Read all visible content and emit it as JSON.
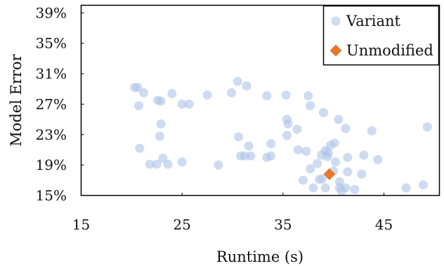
{
  "chart_data": {
    "type": "scatter",
    "xlabel": "Runtime (s)",
    "ylabel": "Model Error",
    "xlim": [
      15,
      50.5
    ],
    "ylim": [
      15,
      40
    ],
    "x_ticks": [
      15,
      25,
      35,
      45
    ],
    "x_tick_labels": [
      "15",
      "25",
      "35",
      "45"
    ],
    "y_ticks": [
      15,
      19,
      23,
      27,
      31,
      35,
      39
    ],
    "y_tick_labels": [
      "15%",
      "19%",
      "23%",
      "27%",
      "31%",
      "35%",
      "39%"
    ],
    "grid": false,
    "legend_position": "top-right",
    "series": [
      {
        "name": "Variant",
        "marker": "circle",
        "color": "#aec3e8",
        "points": [
          [
            20.3,
            29.2
          ],
          [
            20.6,
            29.2
          ],
          [
            20.7,
            26.8
          ],
          [
            21.2,
            28.5
          ],
          [
            22.6,
            27.5
          ],
          [
            22.9,
            27.4
          ],
          [
            24.0,
            28.4
          ],
          [
            25.0,
            27.0
          ],
          [
            25.7,
            27.0
          ],
          [
            27.5,
            28.2
          ],
          [
            29.9,
            28.5
          ],
          [
            30.5,
            30.0
          ],
          [
            31.4,
            29.4
          ],
          [
            33.4,
            28.1
          ],
          [
            35.3,
            28.2
          ],
          [
            37.5,
            28.1
          ],
          [
            37.7,
            26.8
          ],
          [
            39.0,
            25.9
          ],
          [
            40.5,
            25.0
          ],
          [
            35.4,
            25.0
          ],
          [
            35.5,
            24.4
          ],
          [
            36.4,
            23.7
          ],
          [
            22.9,
            24.4
          ],
          [
            22.8,
            22.8
          ],
          [
            20.8,
            21.2
          ],
          [
            30.6,
            22.7
          ],
          [
            31.6,
            21.5
          ],
          [
            33.8,
            21.8
          ],
          [
            35.4,
            22.9
          ],
          [
            36.5,
            21.0
          ],
          [
            37.3,
            20.8
          ],
          [
            38.8,
            20.3
          ],
          [
            39.2,
            20.9
          ],
          [
            39.5,
            20.6
          ],
          [
            39.4,
            20.1
          ],
          [
            39.7,
            21.6
          ],
          [
            40.1,
            21.9
          ],
          [
            40.2,
            19.4
          ],
          [
            41.4,
            20.0
          ],
          [
            41.2,
            23.8
          ],
          [
            43.0,
            20.3
          ],
          [
            43.8,
            23.5
          ],
          [
            44.4,
            19.7
          ],
          [
            49.3,
            24.0
          ],
          [
            23.1,
            19.9
          ],
          [
            21.8,
            19.1
          ],
          [
            22.5,
            19.1
          ],
          [
            23.6,
            19.1
          ],
          [
            25.0,
            19.4
          ],
          [
            28.6,
            19.0
          ],
          [
            30.8,
            20.2
          ],
          [
            31.2,
            20.2
          ],
          [
            31.8,
            20.2
          ],
          [
            33.4,
            20.0
          ],
          [
            33.8,
            20.2
          ],
          [
            37.7,
            18.5
          ],
          [
            38.4,
            19.2
          ],
          [
            38.6,
            17.1
          ],
          [
            38.9,
            17.2
          ],
          [
            40.0,
            18.2
          ],
          [
            41.4,
            18.1
          ],
          [
            42.8,
            17.8
          ],
          [
            37.0,
            17.0
          ],
          [
            38.0,
            16.0
          ],
          [
            39.2,
            16.0
          ],
          [
            40.6,
            16.8
          ],
          [
            40.6,
            16.0
          ],
          [
            40.8,
            15.6
          ],
          [
            41.2,
            16.0
          ],
          [
            42.1,
            15.8
          ],
          [
            47.2,
            16.0
          ],
          [
            48.9,
            16.4
          ]
        ]
      },
      {
        "name": "Unmodified",
        "marker": "diamond",
        "color": "#e8782a",
        "points": [
          [
            39.6,
            17.8
          ]
        ]
      }
    ]
  }
}
